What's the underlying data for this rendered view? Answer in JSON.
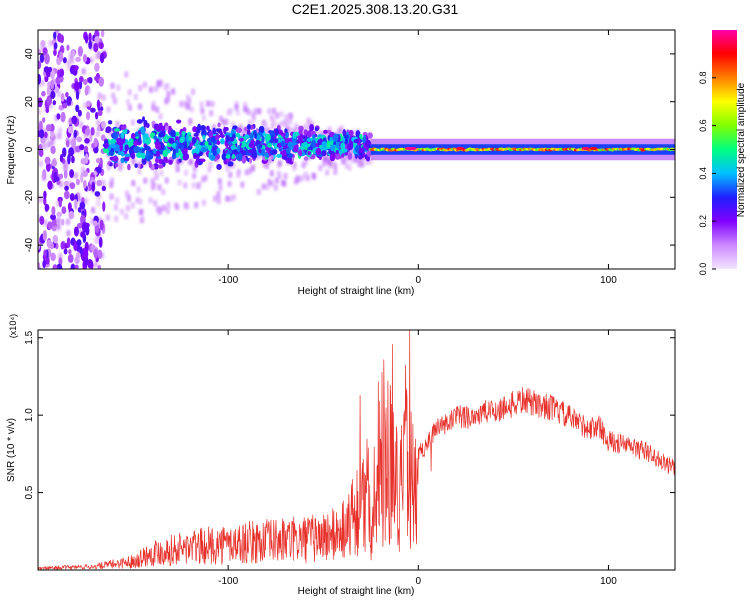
{
  "title": "C2E1.2025.308.13.20.G31",
  "chart_data": [
    {
      "type": "heatmap",
      "name": "spectrogram",
      "xlabel": "Height of straight line (km)",
      "ylabel": "Frequency (Hz)",
      "xlim": [
        -200,
        135
      ],
      "ylim": [
        -50,
        50
      ],
      "x_ticks": [
        -100,
        0,
        100
      ],
      "y_ticks": [
        -40,
        -20,
        0,
        20,
        40
      ],
      "colorbar": {
        "label": "Normalized spectral amplitude",
        "range": [
          0,
          1
        ],
        "ticks": [
          0.0,
          0.2,
          0.4,
          0.6,
          0.8
        ],
        "tick_labels": [
          "0.0",
          "0.2",
          "0.4",
          "0.6",
          "0.8"
        ],
        "colors": [
          "#f2e6ff",
          "#cc88ff",
          "#8000ff",
          "#2020ff",
          "#00c0ff",
          "#00ff80",
          "#80ff00",
          "#ffff00",
          "#ff8000",
          "#ff0000",
          "#ff00aa"
        ]
      },
      "features": [
        {
          "name": "noise-region",
          "x_range": [
            -200,
            -165
          ],
          "freq_spread": [
            -50,
            50
          ],
          "amplitude": 0.2
        },
        {
          "name": "broadband-band",
          "x_range": [
            -165,
            -25
          ],
          "freq_spread": [
            -10,
            12
          ],
          "amplitude": 0.35
        },
        {
          "name": "narrow-signal",
          "x_range": [
            -25,
            135
          ],
          "freq_center": 0,
          "freq_spread": [
            -3,
            3
          ],
          "amplitude": 0.7
        }
      ]
    },
    {
      "type": "line",
      "name": "snr",
      "xlabel": "Height of straight line (km)",
      "ylabel": "SNR (10 * v/v)",
      "y_multiplier": "(x10⁴)",
      "xlim": [
        -200,
        135
      ],
      "ylim": [
        0,
        1.55
      ],
      "x_ticks": [
        -100,
        0,
        100
      ],
      "y_ticks": [
        0.5,
        1.0,
        1.5
      ],
      "y_tick_labels": [
        "0.5",
        "1.0",
        "1.5"
      ],
      "color": "#e8302a",
      "envelope": {
        "x": [
          -200,
          -170,
          -150,
          -140,
          -120,
          -100,
          -80,
          -60,
          -45,
          -35,
          -30,
          -25,
          -20,
          -15,
          -10,
          -5,
          0,
          5,
          10,
          20,
          30,
          40,
          50,
          55,
          60,
          70,
          80,
          90,
          95,
          100,
          110,
          120,
          130,
          135
        ],
        "y": [
          0.02,
          0.04,
          0.1,
          0.2,
          0.26,
          0.3,
          0.33,
          0.35,
          0.4,
          0.55,
          0.8,
          0.5,
          0.9,
          1.3,
          0.9,
          1.2,
          0.75,
          0.85,
          0.93,
          1.0,
          1.02,
          1.05,
          1.09,
          1.12,
          1.1,
          1.07,
          1.0,
          0.93,
          0.95,
          0.85,
          0.82,
          0.78,
          0.7,
          0.67
        ]
      }
    }
  ]
}
